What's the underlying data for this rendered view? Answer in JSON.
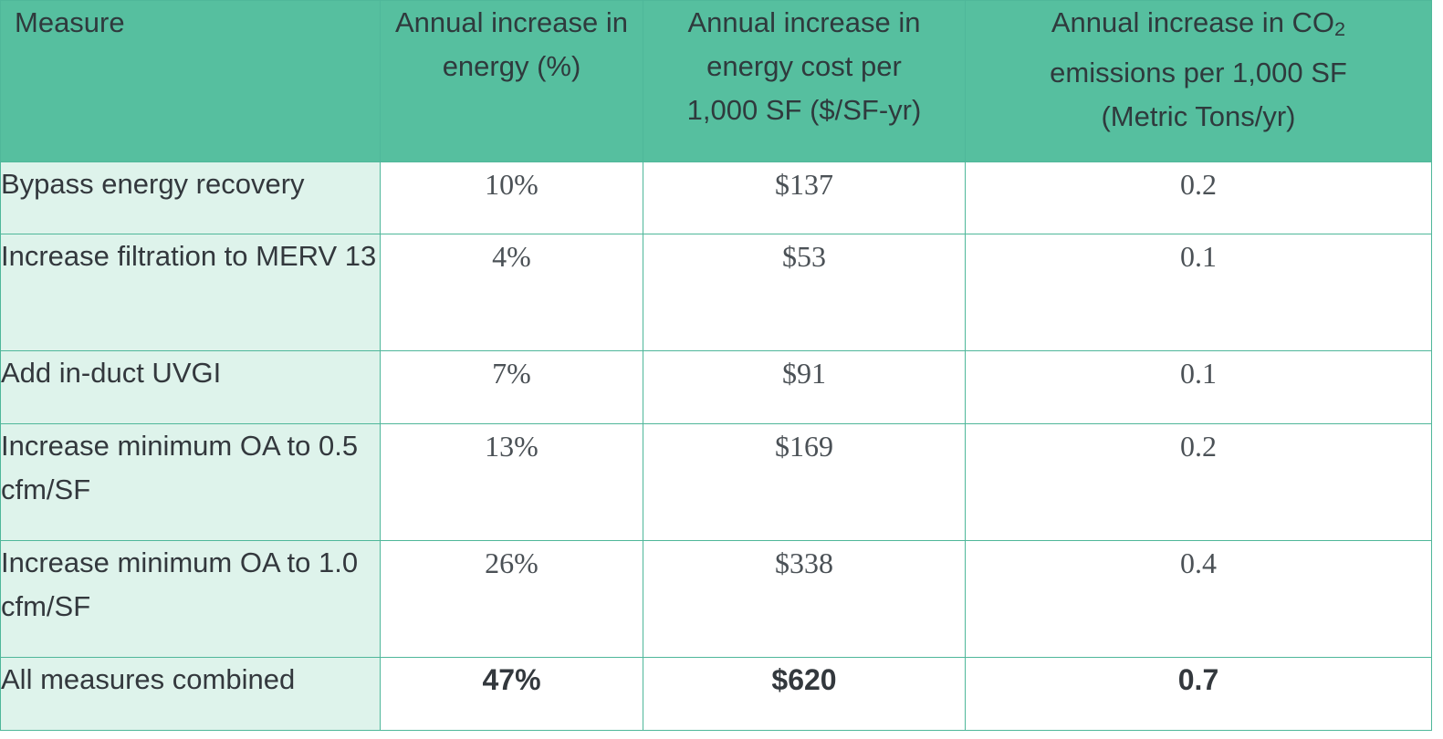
{
  "headers": {
    "measure": "Measure",
    "energy_pct": "Annual increase in energy (%)",
    "cost_line1": "Annual increase in",
    "cost_line2": "energy cost per",
    "cost_line3": "1,000 SF ($/SF-yr)",
    "co2_pre": "Annual increase in CO",
    "co2_sub": "2",
    "co2_line2": "emissions per 1,000 SF",
    "co2_line3": "(Metric Tons/yr)"
  },
  "rows": [
    {
      "measure": "Bypass energy recovery",
      "energy": "10%",
      "cost": "$137",
      "co2": "0.2"
    },
    {
      "measure": "Increase filtration to MERV 13",
      "energy": "4%",
      "cost": "$53",
      "co2": "0.1"
    },
    {
      "measure": "Add in-duct UVGI",
      "energy": "7%",
      "cost": "$91",
      "co2": "0.1"
    },
    {
      "measure": "Increase minimum OA to 0.5 cfm/SF",
      "energy": "13%",
      "cost": "$169",
      "co2": "0.2"
    },
    {
      "measure": "Increase minimum OA to 1.0 cfm/SF",
      "energy": "26%",
      "cost": "$338",
      "co2": "0.4"
    },
    {
      "measure": "All measures combined",
      "energy": "47%",
      "cost": "$620",
      "co2": "0.7"
    }
  ],
  "colors": {
    "header_bg": "#56bf9f",
    "measure_bg": "#def3eb",
    "border": "#4fb79a"
  }
}
